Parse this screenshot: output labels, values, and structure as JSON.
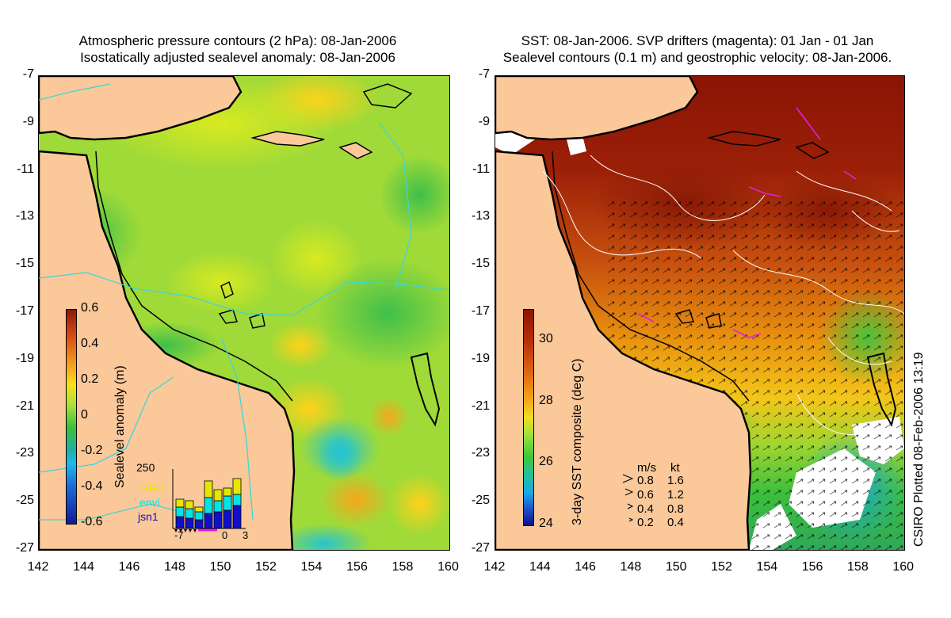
{
  "left_panel": {
    "title_line1": "Atmospheric pressure contours (2 hPa): 08-Jan-2006",
    "title_line2": "Isostatically adjusted sealevel anomaly: 08-Jan-2006",
    "y_ticks": [
      "-7",
      "-9",
      "-11",
      "-13",
      "-15",
      "-17",
      "-19",
      "-21",
      "-23",
      "-25",
      "-27"
    ],
    "x_ticks": [
      "142",
      "144",
      "146",
      "148",
      "150",
      "152",
      "154",
      "156",
      "158",
      "160"
    ],
    "colorbar": {
      "label": "Sealevel anomaly (m)",
      "ticks": [
        "0.6",
        "0.4",
        "0.2",
        "0",
        "-0.2",
        "-0.4",
        "-0.6"
      ],
      "range": [
        -0.6,
        0.6
      ]
    },
    "inset": {
      "y_max_label": "250",
      "x_labels": [
        "-7",
        "0",
        "3"
      ],
      "legend": [
        {
          "name": "GFO",
          "color": "#e6e600"
        },
        {
          "name": "envi",
          "color": "#00e5e5"
        },
        {
          "name": "jsn1",
          "color": "#1010c8"
        }
      ]
    }
  },
  "right_panel": {
    "title_line1": "SST: 08-Jan-2006. SVP drifters (magenta): 01 Jan - 01 Jan",
    "title_line2": "Sealevel contours (0.1 m) and geostrophic velocity: 08-Jan-2006.",
    "y_ticks": [
      "-7",
      "-9",
      "-11",
      "-13",
      "-15",
      "-17",
      "-19",
      "-21",
      "-23",
      "-25",
      "-27"
    ],
    "x_ticks": [
      "142",
      "144",
      "146",
      "148",
      "150",
      "152",
      "154",
      "156",
      "158",
      "160"
    ],
    "colorbar": {
      "label": "3-day SST composite (deg C)",
      "ticks": [
        "30",
        "28",
        "26",
        "24"
      ],
      "range": [
        24,
        31
      ]
    },
    "velocity_legend": {
      "header_ms": "m/s",
      "header_kt": "kt",
      "rows": [
        {
          "ms": "0.8",
          "kt": "1.6"
        },
        {
          "ms": "0.6",
          "kt": "1.2"
        },
        {
          "ms": "0.4",
          "kt": "0.8"
        },
        {
          "ms": "0.2",
          "kt": "0.4"
        }
      ]
    }
  },
  "credit": "CSIRO Plotted 08-Feb-2006 13:19",
  "colors": {
    "land": "#fbc89a",
    "coast": "#000000",
    "pressure_contour": "#3fd6d6",
    "drifter": "#e020e0",
    "sealevel_contour": "#ffffff"
  }
}
